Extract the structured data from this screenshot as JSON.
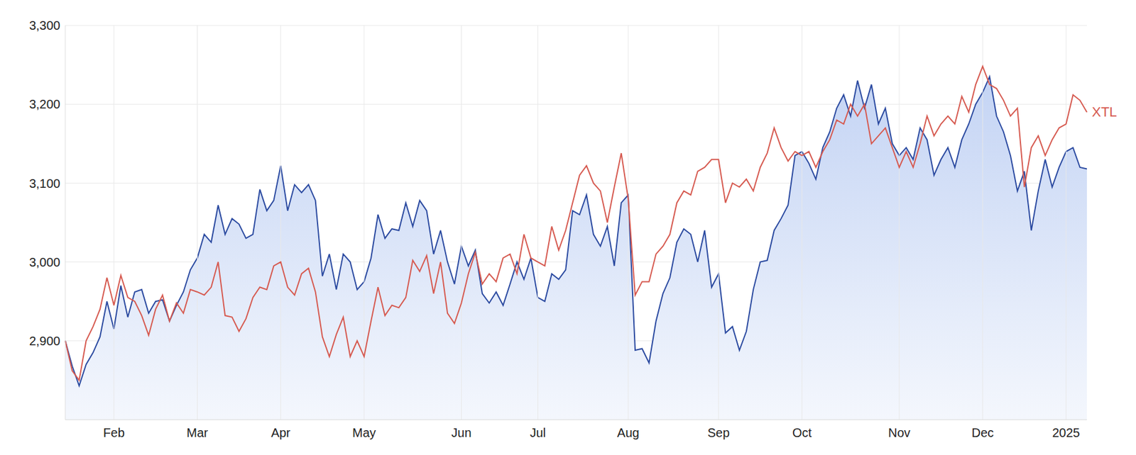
{
  "chart_data": {
    "type": "line",
    "categories": [
      null,
      null,
      null,
      null,
      null,
      null,
      null,
      "Feb",
      null,
      null,
      null,
      null,
      null,
      null,
      null,
      null,
      null,
      null,
      null,
      "Mar",
      null,
      null,
      null,
      null,
      null,
      null,
      null,
      null,
      null,
      null,
      null,
      "Apr",
      null,
      null,
      null,
      null,
      null,
      null,
      null,
      null,
      null,
      null,
      null,
      "May",
      null,
      null,
      null,
      null,
      null,
      null,
      null,
      null,
      null,
      null,
      null,
      null,
      null,
      "Jun",
      null,
      null,
      null,
      null,
      null,
      null,
      null,
      null,
      null,
      null,
      "Jul",
      null,
      null,
      null,
      null,
      null,
      null,
      null,
      null,
      null,
      null,
      null,
      null,
      "Aug",
      null,
      null,
      null,
      null,
      null,
      null,
      null,
      null,
      null,
      null,
      null,
      null,
      "Sep",
      null,
      null,
      null,
      null,
      null,
      null,
      null,
      null,
      null,
      null,
      null,
      "Oct",
      null,
      null,
      null,
      null,
      null,
      null,
      null,
      null,
      null,
      null,
      null,
      null,
      null,
      "Nov",
      null,
      null,
      null,
      null,
      null,
      null,
      null,
      null,
      null,
      null,
      null,
      "Dec",
      null,
      null,
      null,
      null,
      null,
      null,
      null,
      null,
      null,
      null,
      null,
      "2025",
      null,
      null,
      null
    ],
    "series": [
      {
        "color": "#2b4aa0",
        "type": "area",
        "values": [
          2900,
          2868,
          2843,
          2870,
          2885,
          2905,
          2950,
          2915,
          2970,
          2930,
          2962,
          2965,
          2935,
          2950,
          2952,
          2925,
          2945,
          2962,
          2990,
          3005,
          3035,
          3025,
          3072,
          3035,
          3055,
          3048,
          3030,
          3035,
          3092,
          3065,
          3078,
          3122,
          3065,
          3098,
          3088,
          3098,
          3078,
          2982,
          3010,
          2965,
          3010,
          3000,
          2965,
          2975,
          3005,
          3060,
          3030,
          3042,
          3040,
          3075,
          3045,
          3078,
          3065,
          3010,
          3040,
          3000,
          2972,
          3020,
          2995,
          3015,
          2960,
          2948,
          2962,
          2945,
          2972,
          3000,
          2978,
          3005,
          2955,
          2950,
          2985,
          2978,
          2990,
          3065,
          3060,
          3085,
          3035,
          3020,
          3045,
          2995,
          3075,
          3085,
          2888,
          2890,
          2872,
          2925,
          2960,
          2980,
          3025,
          3042,
          3035,
          3000,
          3040,
          2968,
          2985,
          2910,
          2918,
          2888,
          2912,
          2965,
          3000,
          3002,
          3040,
          3055,
          3072,
          3135,
          3140,
          3125,
          3105,
          3145,
          3165,
          3195,
          3212,
          3185,
          3230,
          3195,
          3225,
          3175,
          3195,
          3150,
          3135,
          3145,
          3130,
          3170,
          3155,
          3110,
          3130,
          3145,
          3120,
          3155,
          3175,
          3200,
          3215,
          3235,
          3185,
          3165,
          3135,
          3090,
          3115,
          3040,
          3090,
          3130,
          3095,
          3120,
          3140,
          3145,
          3120,
          3118
        ]
      },
      {
        "name": "XTL",
        "color": "#d65a50",
        "type": "line",
        "values": [
          2900,
          2862,
          2850,
          2900,
          2918,
          2940,
          2980,
          2945,
          2983,
          2955,
          2950,
          2932,
          2907,
          2940,
          2958,
          2925,
          2948,
          2935,
          2965,
          2962,
          2958,
          2968,
          3000,
          2932,
          2930,
          2912,
          2928,
          2955,
          2968,
          2965,
          2995,
          3000,
          2968,
          2958,
          2985,
          2992,
          2962,
          2905,
          2880,
          2908,
          2930,
          2880,
          2900,
          2880,
          2925,
          2968,
          2932,
          2945,
          2942,
          2955,
          3002,
          2988,
          3008,
          2960,
          3000,
          2935,
          2922,
          2948,
          2985,
          3012,
          2972,
          2985,
          2975,
          3005,
          3010,
          2985,
          3035,
          3005,
          3000,
          2995,
          3045,
          3015,
          3040,
          3075,
          3110,
          3122,
          3100,
          3090,
          3050,
          3095,
          3138,
          3080,
          2958,
          2975,
          2975,
          3010,
          3020,
          3035,
          3075,
          3090,
          3085,
          3115,
          3120,
          3130,
          3130,
          3075,
          3100,
          3095,
          3105,
          3090,
          3120,
          3138,
          3170,
          3145,
          3128,
          3140,
          3135,
          3140,
          3120,
          3140,
          3155,
          3180,
          3175,
          3200,
          3185,
          3200,
          3150,
          3160,
          3170,
          3145,
          3120,
          3140,
          3120,
          3150,
          3185,
          3160,
          3175,
          3185,
          3175,
          3210,
          3190,
          3225,
          3248,
          3225,
          3220,
          3205,
          3185,
          3195,
          3095,
          3145,
          3160,
          3135,
          3155,
          3170,
          3175,
          3212,
          3205,
          3190
        ]
      }
    ],
    "ylim": [
      2800,
      3300
    ],
    "yticks": [
      {
        "value": 2900,
        "label": "2,900"
      },
      {
        "value": 3000,
        "label": "3,000"
      },
      {
        "value": 3100,
        "label": "3,100"
      },
      {
        "value": 3200,
        "label": "3,200"
      },
      {
        "value": 3300,
        "label": "3,300"
      }
    ],
    "grid": true
  }
}
